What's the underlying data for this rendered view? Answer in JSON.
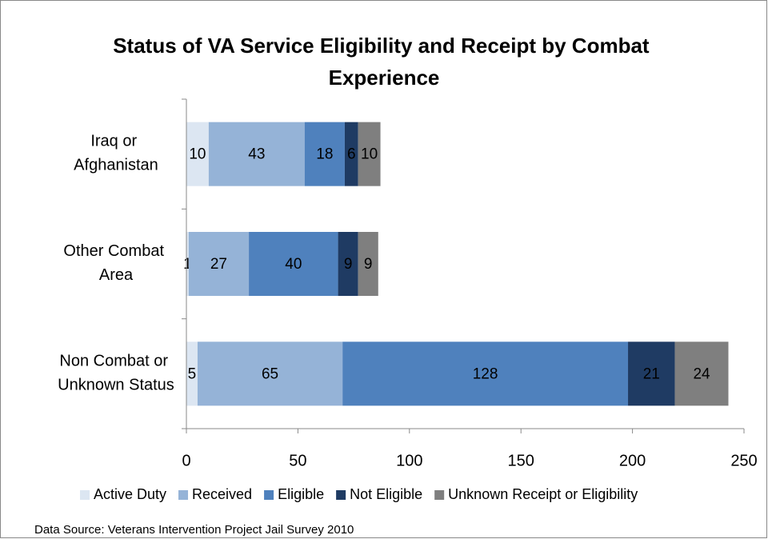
{
  "chart_data": {
    "type": "stacked_barh",
    "title": "Status of VA Service Eligibility and Receipt by Combat Experience",
    "categories": [
      "Iraq or Afghanistan",
      "Other Combat Area",
      "Non Combat or Unknown Status"
    ],
    "series": [
      {
        "name": "Active Duty",
        "color": "#dce6f2",
        "values": [
          10,
          1,
          5
        ]
      },
      {
        "name": "Received",
        "color": "#95b3d7",
        "values": [
          43,
          27,
          65
        ]
      },
      {
        "name": "Eligible",
        "color": "#4f81bd",
        "values": [
          18,
          40,
          128
        ]
      },
      {
        "name": "Not Eligible",
        "color": "#1f3b63",
        "values": [
          6,
          9,
          21
        ]
      },
      {
        "name": "Unknown Receipt or Eligibility",
        "color": "#7f7f7f",
        "values": [
          10,
          9,
          24
        ]
      }
    ],
    "xlim": [
      0,
      250
    ],
    "xticks": [
      0,
      50,
      100,
      150,
      200,
      250
    ],
    "legend": "bottom",
    "source": "Data Source: Veterans Intervention Project Jail Survey 2010"
  }
}
